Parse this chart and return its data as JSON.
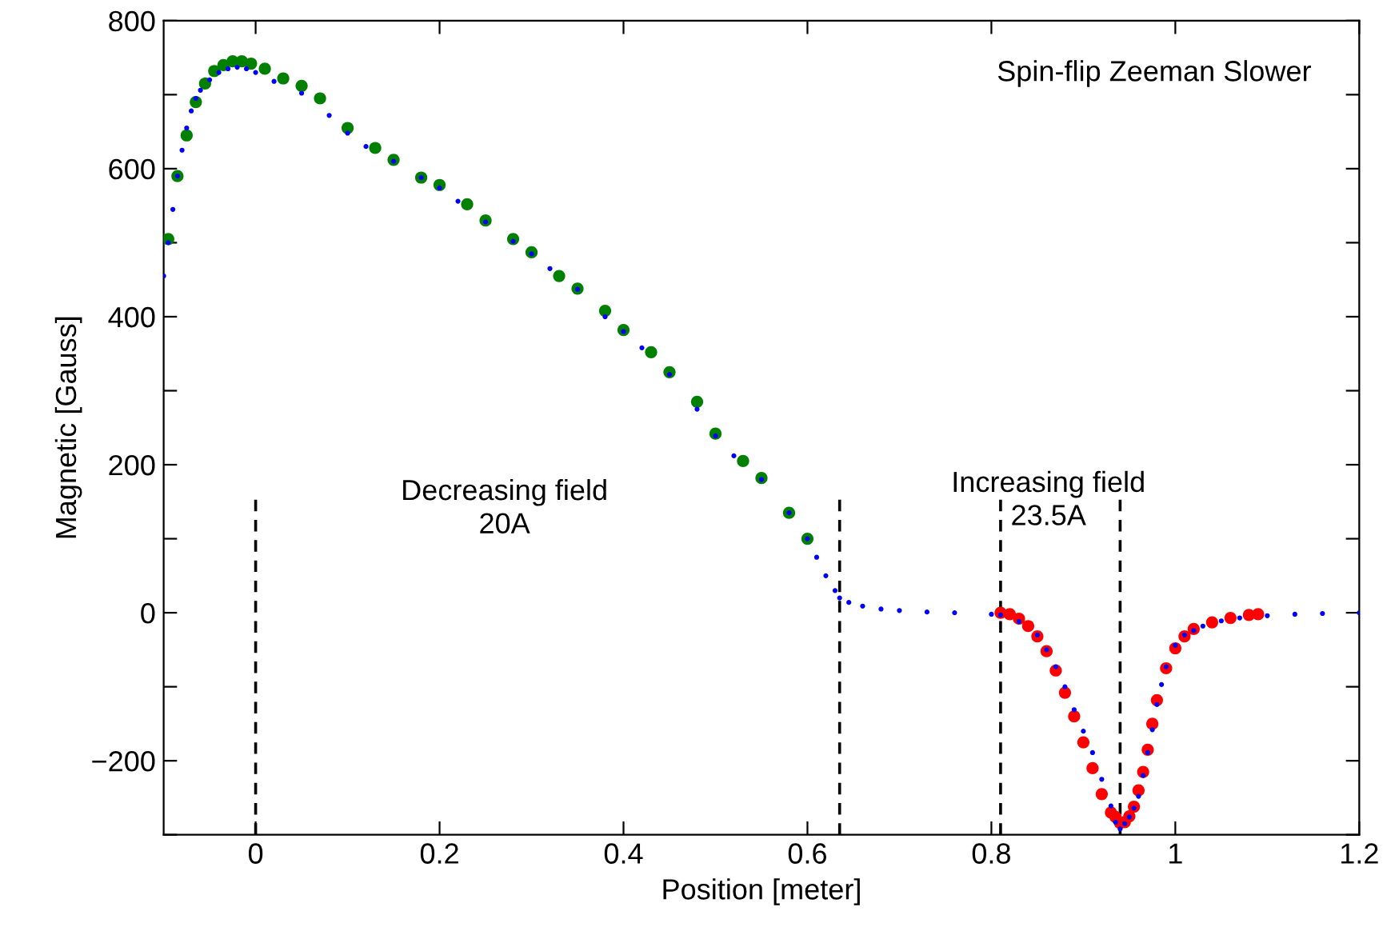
{
  "chart_data": {
    "type": "scatter",
    "xlabel": "Position [meter]",
    "ylabel": "Magnetic [Gauss]",
    "annotations": [
      "Spin-flip Zeeman Slower",
      "Decreasing field\n20A",
      "Increasing field\n23.5A"
    ],
    "xlim": [
      -0.1,
      1.2
    ],
    "ylim": [
      -300,
      800
    ],
    "xticks": [
      0,
      0.2,
      0.4,
      0.6,
      0.8,
      1,
      1.2
    ],
    "yticks": [
      {
        "value": -300,
        "label": null
      },
      -200,
      {
        "value": -100,
        "label": null
      },
      0,
      {
        "value": 100,
        "label": null
      },
      200,
      {
        "value": 300,
        "label": null
      },
      400,
      {
        "value": 500,
        "label": null
      },
      600,
      {
        "value": 700,
        "label": null
      },
      800
    ],
    "marker": "circle",
    "grid": false,
    "ref_lines": [
      {
        "axis": "x",
        "value": 0,
        "line_style": "dashed",
        "color": "#000000"
      },
      {
        "axis": "x",
        "value": 0.635,
        "line_style": "dashed",
        "color": "#000000"
      },
      {
        "axis": "x",
        "value": 0.81,
        "line_style": "dashed",
        "color": "#000000"
      },
      {
        "axis": "x",
        "value": 0.94,
        "line_style": "dashed",
        "color": "#000000"
      }
    ],
    "series": [
      {
        "color": "#008000",
        "x": [
          -0.095,
          -0.085,
          -0.075,
          -0.065,
          -0.055,
          -0.045,
          -0.035,
          -0.025,
          -0.015,
          -0.005,
          0.01,
          0.03,
          0.05,
          0.07,
          0.1,
          0.13,
          0.15,
          0.18,
          0.2,
          0.23,
          0.25,
          0.28,
          0.3,
          0.33,
          0.35,
          0.38,
          0.4,
          0.43,
          0.45,
          0.48,
          0.5,
          0.53,
          0.55,
          0.58,
          0.6
        ],
        "values": [
          505,
          590,
          645,
          690,
          715,
          732,
          740,
          745,
          745,
          742,
          735,
          722,
          712,
          695,
          655,
          628,
          612,
          588,
          578,
          552,
          530,
          505,
          487,
          455,
          438,
          408,
          382,
          352,
          325,
          285,
          242,
          205,
          182,
          135,
          100
        ]
      },
      {
        "color": "#ff0000",
        "x": [
          0.81,
          0.82,
          0.83,
          0.84,
          0.85,
          0.86,
          0.87,
          0.88,
          0.89,
          0.9,
          0.91,
          0.92,
          0.93,
          0.935,
          0.94,
          0.945,
          0.95,
          0.955,
          0.96,
          0.965,
          0.97,
          0.975,
          0.98,
          0.99,
          1.0,
          1.01,
          1.02,
          1.04,
          1.06,
          1.08,
          1.09
        ],
        "values": [
          0,
          -2,
          -8,
          -18,
          -32,
          -52,
          -78,
          -108,
          -140,
          -175,
          -210,
          -245,
          -270,
          -276,
          -284,
          -283,
          -275,
          -262,
          -240,
          -215,
          -185,
          -150,
          -118,
          -75,
          -48,
          -32,
          -22,
          -13,
          -7,
          -3,
          -2
        ]
      },
      {
        "color": "#0000ff",
        "x": [
          -0.1,
          -0.095,
          -0.09,
          -0.085,
          -0.08,
          -0.075,
          -0.07,
          -0.065,
          -0.06,
          -0.05,
          -0.04,
          -0.03,
          -0.02,
          -0.01,
          0,
          0.02,
          0.05,
          0.08,
          0.1,
          0.12,
          0.15,
          0.18,
          0.2,
          0.22,
          0.25,
          0.28,
          0.3,
          0.32,
          0.35,
          0.38,
          0.4,
          0.42,
          0.45,
          0.48,
          0.5,
          0.52,
          0.55,
          0.58,
          0.6,
          0.61,
          0.62,
          0.63,
          0.635,
          0.645,
          0.66,
          0.68,
          0.7,
          0.73,
          0.76,
          0.8,
          0.81,
          0.83,
          0.85,
          0.86,
          0.87,
          0.88,
          0.89,
          0.9,
          0.91,
          0.92,
          0.93,
          0.935,
          0.94,
          0.945,
          0.95,
          0.955,
          0.96,
          0.965,
          0.97,
          0.975,
          0.98,
          0.985,
          0.99,
          1.0,
          1.01,
          1.02,
          1.03,
          1.05,
          1.07,
          1.1,
          1.13,
          1.16,
          1.2
        ],
        "values": [
          455,
          500,
          545,
          590,
          625,
          655,
          678,
          695,
          706,
          720,
          730,
          735,
          737,
          735,
          730,
          718,
          702,
          672,
          648,
          630,
          610,
          588,
          574,
          556,
          528,
          502,
          485,
          465,
          437,
          400,
          380,
          358,
          322,
          275,
          239,
          212,
          180,
          135,
          100,
          75,
          50,
          30,
          20,
          14,
          9,
          5,
          3,
          1,
          0,
          -2,
          -3,
          -12,
          -30,
          -50,
          -73,
          -100,
          -131,
          -160,
          -189,
          -225,
          -261,
          -283,
          -292,
          -285,
          -276,
          -264,
          -248,
          -220,
          -189,
          -158,
          -124,
          -97,
          -73,
          -44,
          -30,
          -24,
          -18,
          -11,
          -7,
          -4,
          -2,
          -1,
          0
        ]
      }
    ]
  }
}
